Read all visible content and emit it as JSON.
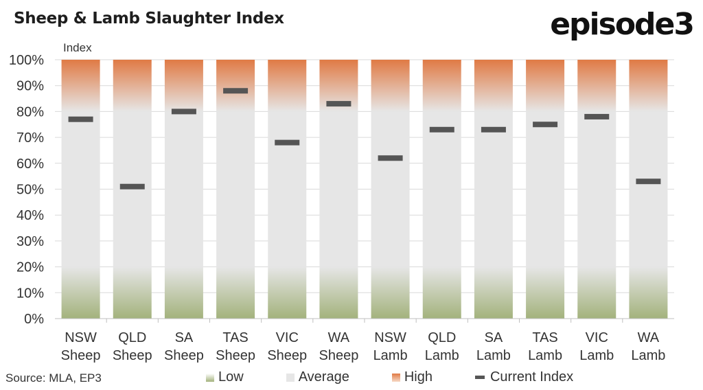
{
  "header": {
    "title": "Sheep & Lamb Slaughter Index",
    "logo_text": "episode3"
  },
  "source": "Source: MLA, EP3",
  "legend": {
    "low": "Low",
    "average": "Average",
    "high": "High",
    "current": "Current Index"
  },
  "colors": {
    "low": "#a3b27c",
    "average": "#e6e6e6",
    "high": "#e07a45",
    "current_index": "#555555"
  },
  "chart_data": {
    "type": "bar",
    "ylabel": "Index",
    "ylim": [
      0,
      100
    ],
    "yticks": [
      "0%",
      "10%",
      "20%",
      "30%",
      "40%",
      "50%",
      "60%",
      "70%",
      "80%",
      "90%",
      "100%"
    ],
    "categories": [
      [
        "NSW",
        "Sheep"
      ],
      [
        "QLD",
        "Sheep"
      ],
      [
        "SA",
        "Sheep"
      ],
      [
        "TAS",
        "Sheep"
      ],
      [
        "VIC",
        "Sheep"
      ],
      [
        "WA",
        "Sheep"
      ],
      [
        "NSW",
        "Lamb"
      ],
      [
        "QLD",
        "Lamb"
      ],
      [
        "SA",
        "Lamb"
      ],
      [
        "TAS",
        "Lamb"
      ],
      [
        "VIC",
        "Lamb"
      ],
      [
        "WA",
        "Lamb"
      ]
    ],
    "bands": {
      "low": [
        0,
        20
      ],
      "average": [
        20,
        80
      ],
      "high": [
        80,
        100
      ]
    },
    "current_index": [
      77,
      51,
      80,
      88,
      68,
      83,
      62,
      73,
      73,
      75,
      78,
      53
    ]
  }
}
